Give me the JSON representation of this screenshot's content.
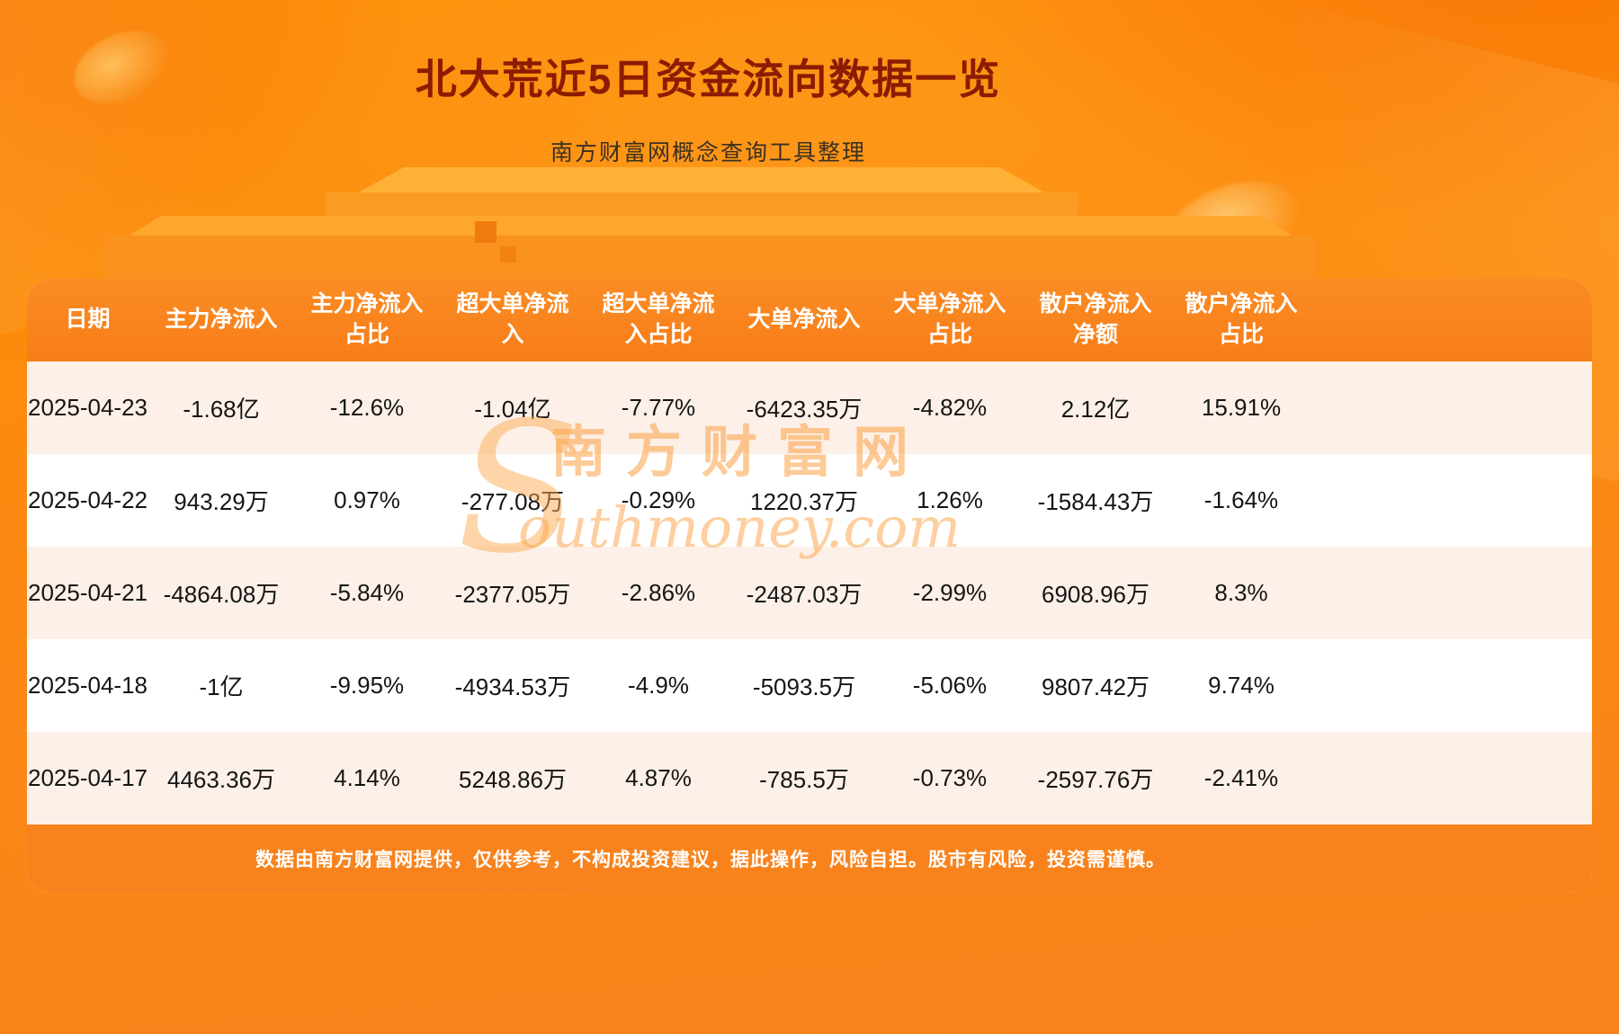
{
  "page": {
    "title": "北大荒近5日资金流向数据一览",
    "subtitle": "南方财富网概念查询工具整理",
    "footer_note": "数据由南方财富网提供，仅供参考，不构成投资建议，据此操作，风险自担。股市有风险，投资需谨慎。"
  },
  "watermark": {
    "initial": "S",
    "cn": "南方财富网",
    "en_rest": "outhmoney.com"
  },
  "colors": {
    "title_text": "#8c1b02",
    "background_orange": "#fb8a12",
    "table_header_bg": "#f8821c",
    "row_alt_bg": "#fcf0e8",
    "row_bg": "#ffffff",
    "footer_band_bg": "#f8831d",
    "header_text": "#ffffff",
    "cell_text": "#151515"
  },
  "chart_data": {
    "type": "table",
    "title": "北大荒近5日资金流向数据一览",
    "columns": [
      "日期",
      "主力净流入",
      "主力净流入占比",
      "超大单净流入",
      "超大单净流入占比",
      "大单净流入",
      "大单净流入占比",
      "散户净流入净额",
      "散户净流入占比"
    ],
    "rows": [
      [
        "2025-04-23",
        "-1.68亿",
        "-12.6%",
        "-1.04亿",
        "-7.77%",
        "-6423.35万",
        "-4.82%",
        "2.12亿",
        "15.91%"
      ],
      [
        "2025-04-22",
        "943.29万",
        "0.97%",
        "-277.08万",
        "-0.29%",
        "1220.37万",
        "1.26%",
        "-1584.43万",
        "-1.64%"
      ],
      [
        "2025-04-21",
        "-4864.08万",
        "-5.84%",
        "-2377.05万",
        "-2.86%",
        "-2487.03万",
        "-2.99%",
        "6908.96万",
        "8.3%"
      ],
      [
        "2025-04-18",
        "-1亿",
        "-9.95%",
        "-4934.53万",
        "-4.9%",
        "-5093.5万",
        "-5.06%",
        "9807.42万",
        "9.74%"
      ],
      [
        "2025-04-17",
        "4463.36万",
        "4.14%",
        "5248.86万",
        "4.87%",
        "-785.5万",
        "-0.73%",
        "-2597.76万",
        "-2.41%"
      ]
    ]
  }
}
